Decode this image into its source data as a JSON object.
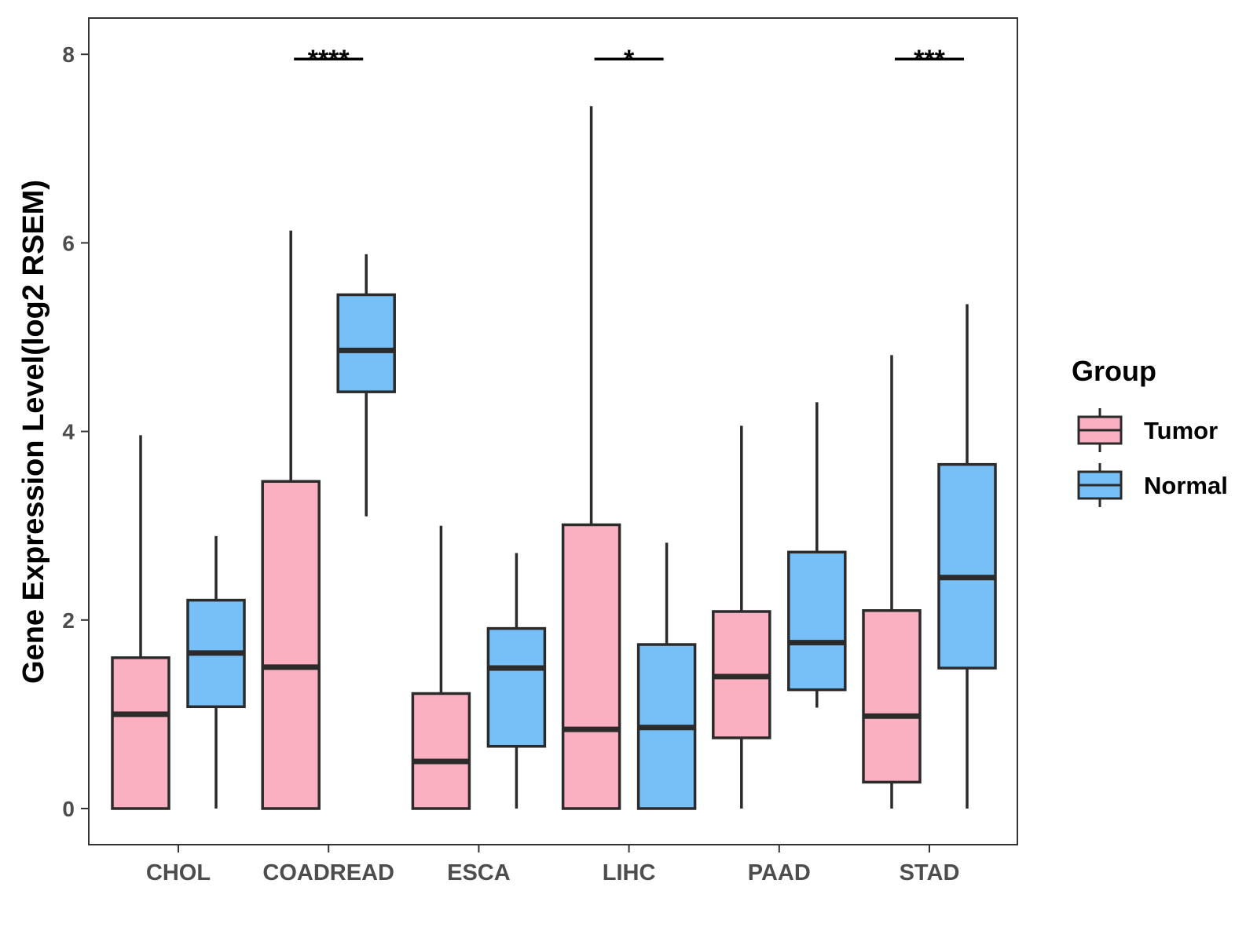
{
  "chart_data": {
    "type": "boxplot",
    "title": "",
    "xlabel": "",
    "ylabel": "Gene Expression Level(log2 RSEM)",
    "ylim": [
      -0.4,
      8.4
    ],
    "yticks": [
      0,
      2,
      4,
      6,
      8
    ],
    "categories": [
      "CHOL",
      "COADREAD",
      "ESCA",
      "LIHC",
      "PAAD",
      "STAD"
    ],
    "series": [
      {
        "name": "Tumor",
        "color": "#FBB0C1",
        "boxes": [
          {
            "whisker_low": 0,
            "q1": 0,
            "median": 1.0,
            "q3": 1.6,
            "whisker_high": 3.96
          },
          {
            "whisker_low": 0,
            "q1": 0,
            "median": 1.5,
            "q3": 3.47,
            "whisker_high": 6.13
          },
          {
            "whisker_low": 0,
            "q1": 0,
            "median": 0.5,
            "q3": 1.22,
            "whisker_high": 3.0
          },
          {
            "whisker_low": 0,
            "q1": 0,
            "median": 0.84,
            "q3": 3.01,
            "whisker_high": 7.45
          },
          {
            "whisker_low": 0,
            "q1": 0.75,
            "median": 1.4,
            "q3": 2.09,
            "whisker_high": 4.06
          },
          {
            "whisker_low": 0,
            "q1": 0.28,
            "median": 0.98,
            "q3": 2.1,
            "whisker_high": 4.81
          }
        ]
      },
      {
        "name": "Normal",
        "color": "#76C0F7",
        "boxes": [
          {
            "whisker_low": 0,
            "q1": 1.08,
            "median": 1.65,
            "q3": 2.21,
            "whisker_high": 2.89
          },
          {
            "whisker_low": 3.1,
            "q1": 4.42,
            "median": 4.86,
            "q3": 5.45,
            "whisker_high": 5.88
          },
          {
            "whisker_low": 0,
            "q1": 0.66,
            "median": 1.49,
            "q3": 1.91,
            "whisker_high": 2.71
          },
          {
            "whisker_low": 0,
            "q1": 0,
            "median": 0.86,
            "q3": 1.74,
            "whisker_high": 2.82
          },
          {
            "whisker_low": 1.07,
            "q1": 1.26,
            "median": 1.76,
            "q3": 2.72,
            "whisker_high": 4.31
          },
          {
            "whisker_low": 0,
            "q1": 1.49,
            "median": 2.45,
            "q3": 3.65,
            "whisker_high": 5.35
          }
        ]
      }
    ],
    "significance": [
      {
        "category": "COADREAD",
        "label": "****",
        "y": 7.95
      },
      {
        "category": "LIHC",
        "label": "*",
        "y": 7.95
      },
      {
        "category": "STAD",
        "label": "***",
        "y": 7.95
      }
    ],
    "legend": {
      "title": "Group",
      "position": "right",
      "items": [
        "Tumor",
        "Normal"
      ]
    },
    "grid": false
  }
}
